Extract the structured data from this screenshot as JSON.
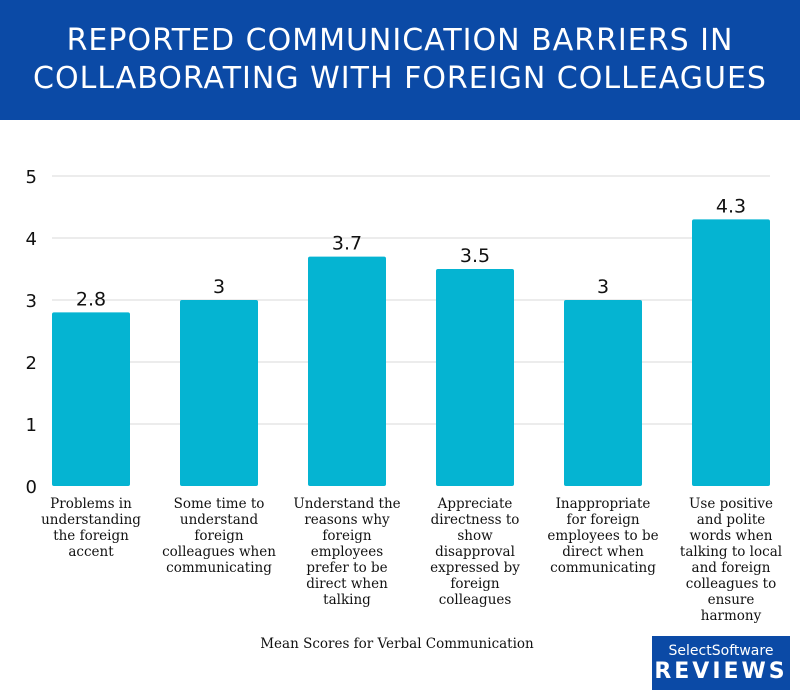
{
  "header": {
    "title_line1": "REPORTED COMMUNICATION BARRIERS IN",
    "title_line2": "COLLABORATING WITH FOREIGN COLLEAGUES"
  },
  "chart_data": {
    "type": "bar",
    "categories": [
      "Problems in understanding the foreign accent",
      "Some time to understand foreign colleagues when communicating",
      "Understand the reasons why foreign employees prefer to be direct when talking",
      "Appreciate directness to show disapproval expressed by foreign colleagues",
      "Inappropriate for foreign employees to be direct when communicating",
      "Use positive and polite words when talking to local and foreign colleagues to ensure harmony"
    ],
    "values": [
      2.8,
      3,
      3.7,
      3.5,
      3,
      4.3
    ],
    "data_labels": [
      "2.8",
      "3",
      "3.7",
      "3.5",
      "3",
      "4.3"
    ],
    "yticks": [
      "0",
      "1",
      "2",
      "3",
      "4",
      "5"
    ],
    "ylim": [
      0,
      5
    ],
    "xlabel": "Mean Scores for Verbal Communication",
    "grid": true,
    "bar_color": "#05b4d2"
  },
  "x_labels": [
    [
      "Problems in",
      "understanding",
      "the foreign",
      "accent"
    ],
    [
      "Some time to",
      "understand",
      "foreign",
      "colleagues when",
      "communicating"
    ],
    [
      "Understand the",
      "reasons why",
      "foreign",
      "employees",
      "prefer to be",
      "direct when",
      "talking"
    ],
    [
      "Appreciate",
      "directness to",
      "show",
      "disapproval",
      "expressed by",
      "foreign",
      "colleagues"
    ],
    [
      "Inappropriate",
      "for foreign",
      "employees to be",
      "direct when",
      "communicating"
    ],
    [
      "Use positive",
      "and polite",
      "words when",
      "talking to local",
      "and foreign",
      "colleagues to",
      "ensure",
      "harmony"
    ]
  ],
  "badge": {
    "line1": "SelectSoftware",
    "line2": "REVIEWS"
  }
}
